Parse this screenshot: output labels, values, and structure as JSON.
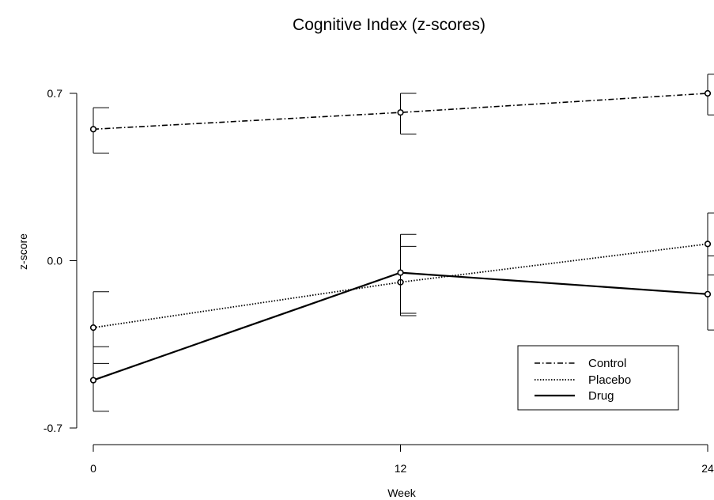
{
  "chart_data": {
    "type": "line",
    "title": "Cognitive Index (z-scores)",
    "xlabel": "Week",
    "ylabel": "z-score",
    "x": [
      0,
      12,
      24
    ],
    "xticks": [
      "0",
      "12",
      "24"
    ],
    "yticks": [
      "0.7",
      "0.0",
      "-0.7"
    ],
    "ytick_values": [
      0.7,
      0.0,
      -0.7
    ],
    "xlim": [
      0,
      24
    ],
    "ylim": [
      -0.7,
      0.7
    ],
    "grid": false,
    "legend_position": "bottom-right",
    "series": [
      {
        "name": "Control",
        "style": "dashdot",
        "values": [
          0.55,
          0.62,
          0.7
        ],
        "ci_upper": [
          0.64,
          0.7,
          0.78
        ],
        "ci_lower": [
          0.45,
          0.53,
          0.61
        ]
      },
      {
        "name": "Placebo",
        "style": "dotted",
        "values": [
          -0.28,
          -0.09,
          0.07
        ],
        "ci_upper": [
          -0.13,
          0.06,
          0.2
        ],
        "ci_lower": [
          -0.43,
          -0.23,
          -0.06
        ]
      },
      {
        "name": "Drug",
        "style": "solid",
        "values": [
          -0.5,
          -0.05,
          -0.14
        ],
        "ci_upper": [
          -0.36,
          0.11,
          0.02
        ],
        "ci_lower": [
          -0.63,
          -0.22,
          -0.29
        ]
      }
    ],
    "colors": {
      "axis": "#000000",
      "line": "#000000",
      "background": "#ffffff"
    }
  }
}
